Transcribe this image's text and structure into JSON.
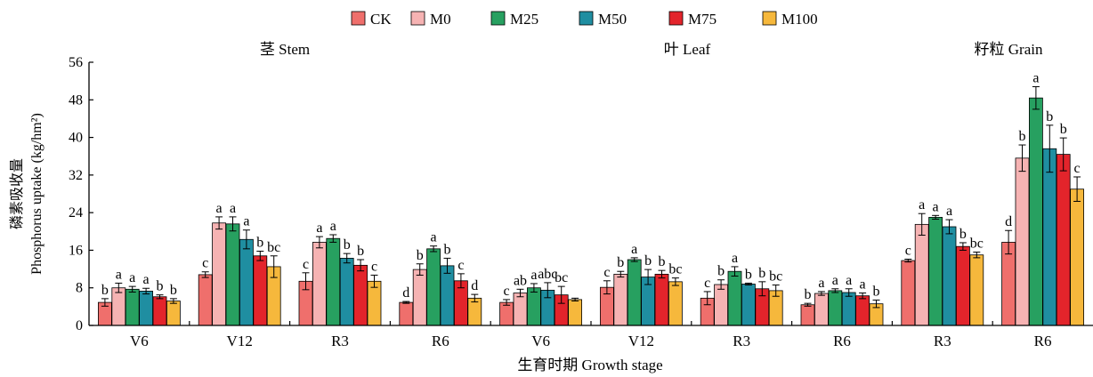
{
  "chart_data": {
    "type": "bar",
    "xlabel": "生育时期 Growth stage",
    "ylabel": [
      "磷素吸收量",
      "Phosphorus uptake (kg/hm²)"
    ],
    "ylim": [
      0,
      56
    ],
    "yticks": [
      0,
      8,
      16,
      24,
      32,
      40,
      48,
      56
    ],
    "grid": false,
    "legend_position": "top-center",
    "series_names": [
      "CK",
      "M0",
      "M25",
      "M50",
      "M75",
      "M100"
    ],
    "series_colors": [
      "#ef6f6c",
      "#f6b3b3",
      "#27a060",
      "#1f8ea1",
      "#e3242b",
      "#f6b83c"
    ],
    "panels": [
      {
        "title": "茎 Stem",
        "groups": [
          {
            "stage": "V6",
            "values": [
              4.9,
              8.0,
              7.7,
              7.3,
              6.1,
              5.2
            ],
            "errors": [
              0.8,
              1.0,
              0.6,
              0.6,
              0.4,
              0.5
            ],
            "letters": [
              "b",
              "a",
              "a",
              "a",
              "b",
              "b"
            ]
          },
          {
            "stage": "V12",
            "values": [
              10.8,
              21.8,
              21.6,
              18.3,
              14.8,
              12.5
            ],
            "errors": [
              0.6,
              1.3,
              1.5,
              2.0,
              1.0,
              2.3
            ],
            "letters": [
              "c",
              "a",
              "a",
              "a",
              "b",
              "bc"
            ]
          },
          {
            "stage": "R3",
            "values": [
              9.4,
              17.7,
              18.5,
              14.3,
              12.8,
              9.4
            ],
            "errors": [
              1.8,
              1.2,
              0.8,
              1.0,
              1.2,
              1.3
            ],
            "letters": [
              "c",
              "a",
              "a",
              "b",
              "b",
              "c"
            ]
          },
          {
            "stage": "R6",
            "values": [
              4.9,
              11.9,
              16.3,
              12.7,
              9.5,
              5.8
            ],
            "errors": [
              0.2,
              1.2,
              0.6,
              1.6,
              1.5,
              0.8
            ],
            "letters": [
              "d",
              "b",
              "a",
              "b",
              "c",
              "d"
            ]
          }
        ]
      },
      {
        "title": "叶 Leaf",
        "groups": [
          {
            "stage": "V6",
            "values": [
              4.9,
              6.9,
              8.0,
              7.5,
              6.5,
              5.5
            ],
            "errors": [
              0.6,
              0.8,
              0.9,
              1.6,
              1.8,
              0.3
            ],
            "letters": [
              "c",
              "ab",
              "a",
              "abc",
              "bc",
              ""
            ]
          },
          {
            "stage": "V12",
            "values": [
              8.1,
              10.9,
              14.0,
              10.3,
              10.9,
              9.3
            ],
            "errors": [
              1.4,
              0.6,
              0.4,
              1.6,
              0.8,
              0.8
            ],
            "letters": [
              "c",
              "b",
              "a",
              "b",
              "b",
              "bc"
            ]
          },
          {
            "stage": "R3",
            "values": [
              5.8,
              8.7,
              11.5,
              8.8,
              7.8,
              7.4
            ],
            "errors": [
              1.4,
              1.0,
              1.0,
              0.2,
              1.5,
              1.2
            ],
            "letters": [
              "c",
              "b",
              "a",
              "b",
              "b",
              "bc"
            ]
          },
          {
            "stage": "R6",
            "values": [
              4.4,
              6.8,
              7.4,
              7.0,
              6.3,
              4.6
            ],
            "errors": [
              0.3,
              0.4,
              0.4,
              0.8,
              0.6,
              0.8
            ],
            "letters": [
              "b",
              "a",
              "a",
              "a",
              "a",
              "b"
            ]
          }
        ]
      },
      {
        "title": "籽粒 Grain",
        "groups": [
          {
            "stage": "R3",
            "values": [
              13.8,
              21.5,
              23.0,
              21.0,
              16.8,
              15.0
            ],
            "errors": [
              0.3,
              2.3,
              0.4,
              1.5,
              0.8,
              0.6
            ],
            "letters": [
              "c",
              "a",
              "a",
              "a",
              "b",
              "bc"
            ]
          },
          {
            "stage": "R6",
            "values": [
              17.7,
              35.6,
              48.4,
              37.6,
              36.4,
              29.0
            ],
            "errors": [
              2.5,
              2.8,
              2.4,
              5.0,
              3.5,
              2.6
            ],
            "letters": [
              "d",
              "b",
              "a",
              "b",
              "b",
              "c"
            ]
          }
        ]
      }
    ]
  }
}
